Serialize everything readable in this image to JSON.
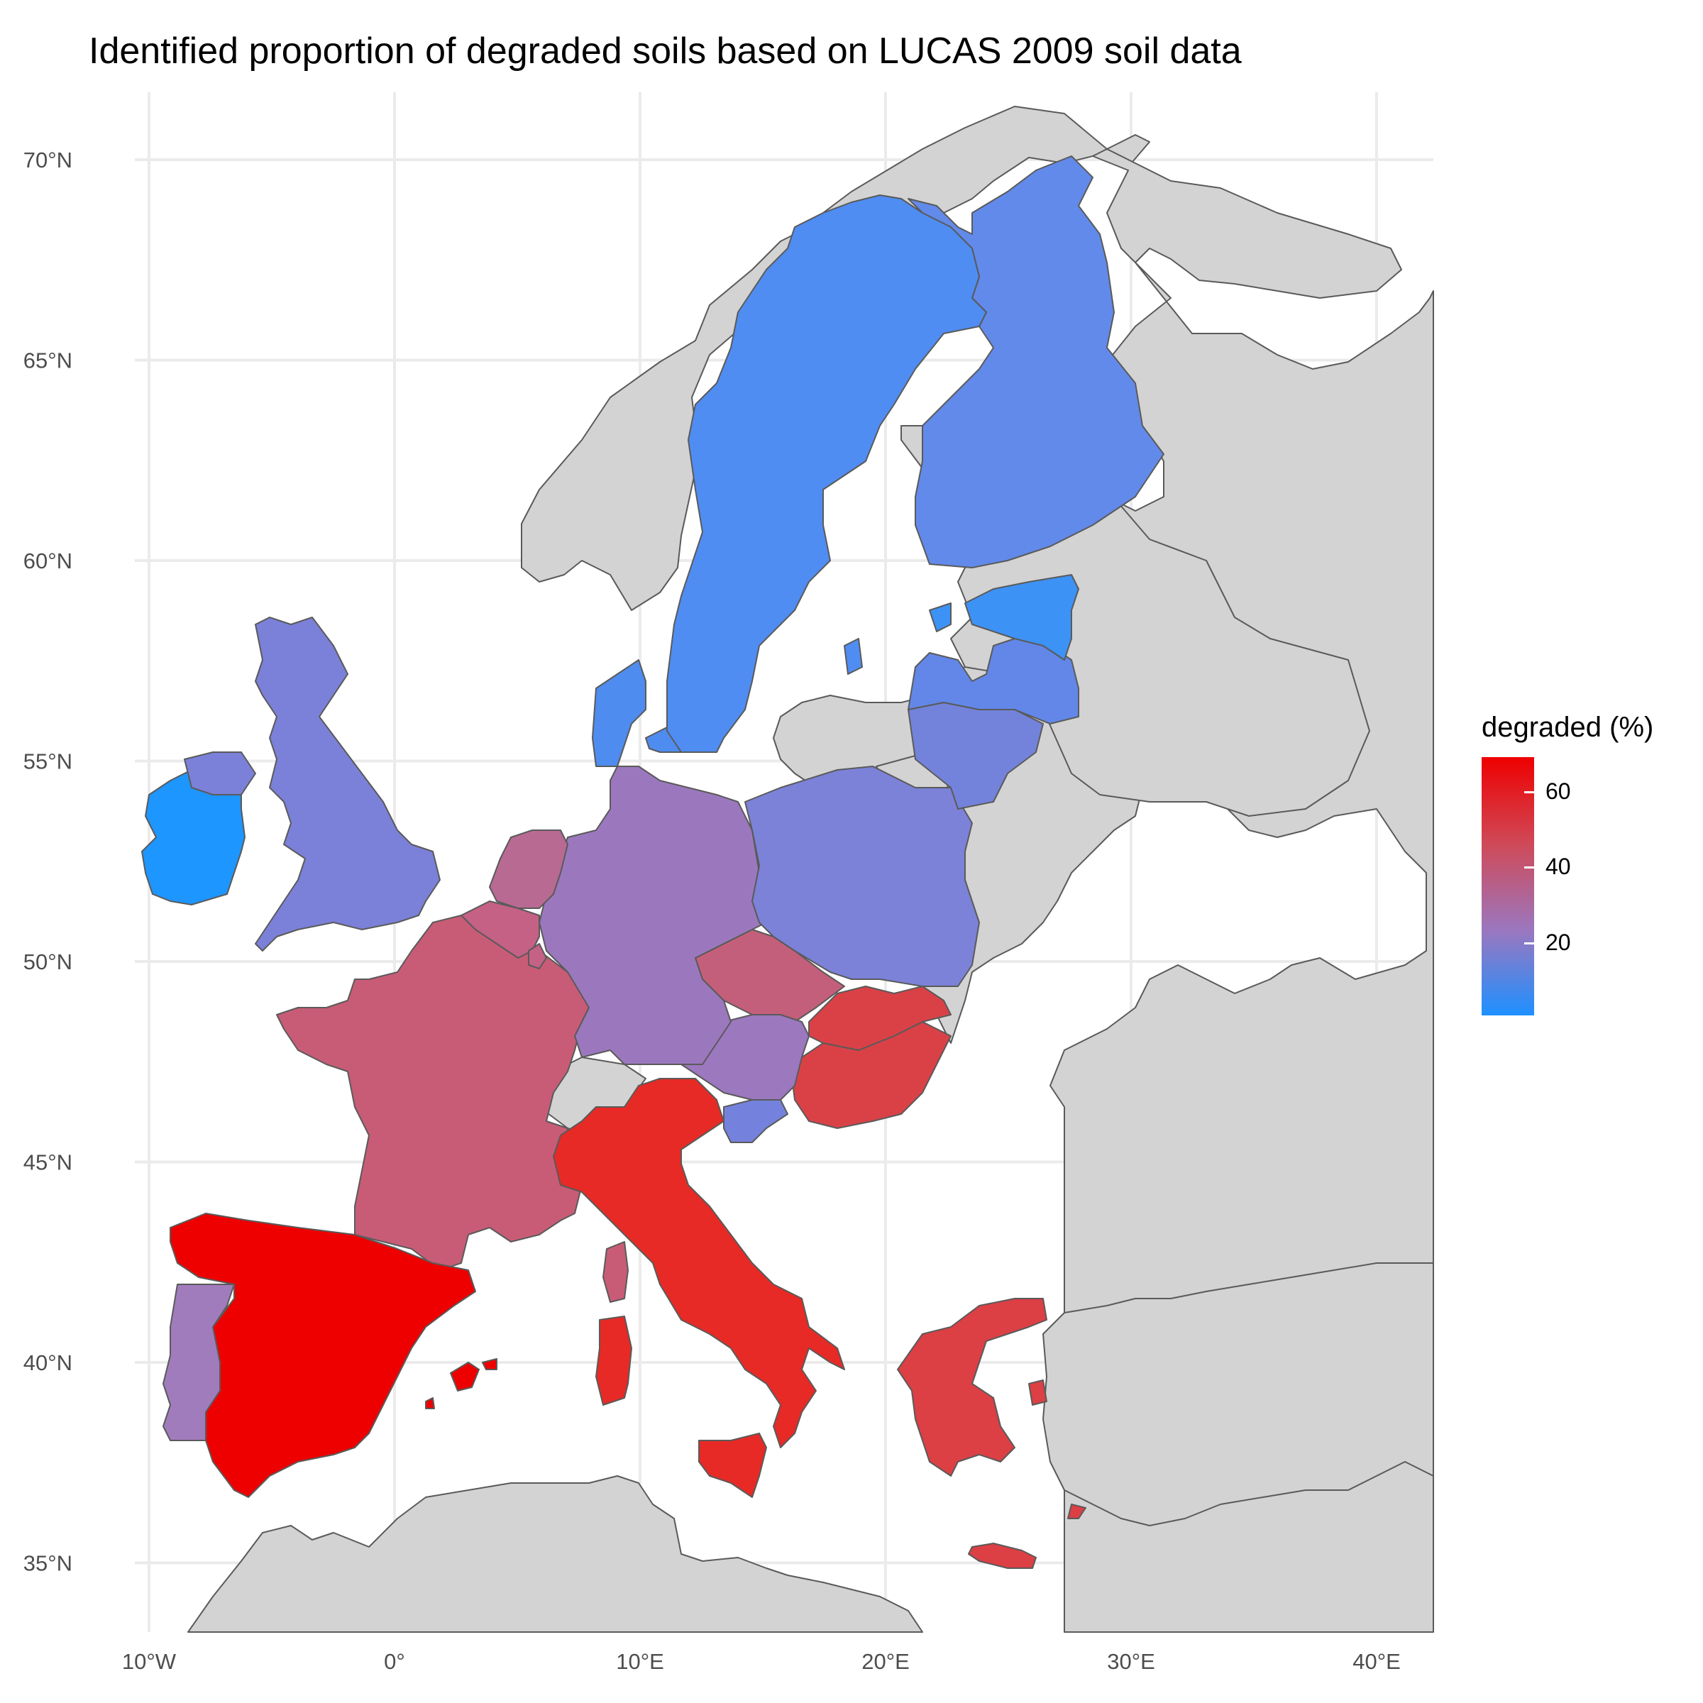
{
  "title": "Identified proportion of degraded soils based on LUCAS 2009 soil data",
  "legend": {
    "title": "degraded (%)",
    "ticks": [
      {
        "value": 60,
        "label": "60"
      },
      {
        "value": 40,
        "label": "40"
      },
      {
        "value": 20,
        "label": "20"
      }
    ],
    "range": [
      1,
      70
    ],
    "colors": {
      "low": "#1e90ff",
      "mid": "#9b77bf",
      "high": "#ee0000"
    }
  },
  "axes": {
    "x_ticks": [
      {
        "value": -10,
        "label": "10°W"
      },
      {
        "value": 0,
        "label": "0°"
      },
      {
        "value": 10,
        "label": "10°E"
      },
      {
        "value": 20,
        "label": "20°E"
      },
      {
        "value": 30,
        "label": "30°E"
      },
      {
        "value": 40,
        "label": "40°E"
      }
    ],
    "y_ticks": [
      {
        "value": 70,
        "label": "70°N"
      },
      {
        "value": 65,
        "label": "65°N"
      },
      {
        "value": 60,
        "label": "60°N"
      },
      {
        "value": 55,
        "label": "55°N"
      },
      {
        "value": 50,
        "label": "50°N"
      },
      {
        "value": 45,
        "label": "45°N"
      },
      {
        "value": 40,
        "label": "40°N"
      },
      {
        "value": 35,
        "label": "35°N"
      }
    ],
    "x_range": [
      -10.5,
      42.3
    ],
    "y_range": [
      33.4,
      71.7
    ]
  },
  "chart_data": {
    "type": "choropleth",
    "title": "Identified proportion of degraded soils based on LUCAS 2009 soil data",
    "fill_label": "degraded (%)",
    "regions": [
      {
        "id": "spain",
        "value": 70,
        "color": "#ee0000"
      },
      {
        "id": "portugal",
        "value": 20,
        "color": "#a17cbc"
      },
      {
        "id": "france",
        "value": 38,
        "color": "#c85c77"
      },
      {
        "id": "italy",
        "value": 62,
        "color": "#e72a25"
      },
      {
        "id": "corsica",
        "value": 38,
        "color": "#c85c77"
      },
      {
        "id": "sardinia",
        "value": 62,
        "color": "#e72a25"
      },
      {
        "id": "sicily",
        "value": 62,
        "color": "#e72a25"
      },
      {
        "id": "balearic-islands",
        "value": 70,
        "color": "#ee0000"
      },
      {
        "id": "greece",
        "value": 55,
        "color": "#dc3f44"
      },
      {
        "id": "crete",
        "value": 55,
        "color": "#dc3f44"
      },
      {
        "id": "hungary",
        "value": 53,
        "color": "#da4147"
      },
      {
        "id": "slovakia",
        "value": 53,
        "color": "#da4147"
      },
      {
        "id": "czechia",
        "value": 38,
        "color": "#c45f7b"
      },
      {
        "id": "austria",
        "value": 22,
        "color": "#9c78bf"
      },
      {
        "id": "slovenia",
        "value": 12,
        "color": "#7582dd"
      },
      {
        "id": "germany",
        "value": 22,
        "color": "#9b78be"
      },
      {
        "id": "netherlands",
        "value": 33,
        "color": "#b86a93"
      },
      {
        "id": "belgium",
        "value": 36,
        "color": "#c56184"
      },
      {
        "id": "luxembourg",
        "value": 36,
        "color": "#c56184"
      },
      {
        "id": "denmark",
        "value": 5,
        "color": "#4f8cf0"
      },
      {
        "id": "poland",
        "value": 13,
        "color": "#7c82d8"
      },
      {
        "id": "lithuania",
        "value": 13,
        "color": "#7383db"
      },
      {
        "id": "latvia",
        "value": 9,
        "color": "#6287e8"
      },
      {
        "id": "estonia",
        "value": 2,
        "color": "#3d92f6"
      },
      {
        "id": "finland",
        "value": 9,
        "color": "#628aea"
      },
      {
        "id": "sweden",
        "value": 5,
        "color": "#4f8df3"
      },
      {
        "id": "united-kingdom",
        "value": 14,
        "color": "#7b81d8"
      },
      {
        "id": "ireland",
        "value": 1,
        "color": "#1e96ff"
      }
    ]
  }
}
